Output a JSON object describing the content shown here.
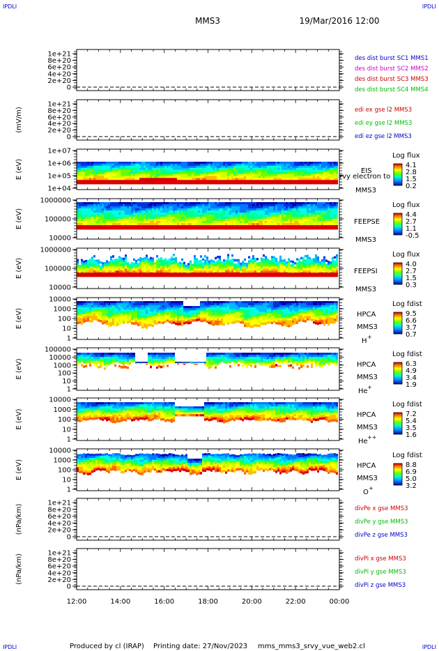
{
  "corner_tags": {
    "tl": "IPDLI",
    "tr": "IPDLI",
    "bl": "IPDLI",
    "br": "IPDLI"
  },
  "header": {
    "spacecraft": "MMS3",
    "datetime": "19/Mar/2016 12:00"
  },
  "footer": {
    "producer": "Produced by cl (IRAP)",
    "printing": "Printing date: 27/Nov/2023",
    "script": "mms_mms3_srvy_vue_web2.cl"
  },
  "time_axis": {
    "ticks": [
      "12:00",
      "14:00",
      "16:00",
      "18:00",
      "20:00",
      "22:00",
      "00:00"
    ],
    "range_hours": [
      12,
      24
    ]
  },
  "colors": {
    "blue": "#0000cc",
    "magenta": "#cc00cc",
    "red": "#cc0000",
    "green": "#00bb00"
  },
  "chart_data": [
    {
      "type": "line",
      "id": "des",
      "ylabel": "",
      "yticks": [
        "1e+21",
        "8e+20",
        "6e+20",
        "4e+20",
        "2e+20",
        "0"
      ],
      "legend": [
        {
          "text": "des dist burst SC1 MMS1",
          "color": "#0000cc"
        },
        {
          "text": "des dist burst SC2 MMS2",
          "color": "#cc00cc"
        },
        {
          "text": "des dist burst SC3 MMS3",
          "color": "#cc0000"
        },
        {
          "text": "des dist burst SC4 MMS4",
          "color": "#00bb00"
        }
      ]
    },
    {
      "type": "line",
      "id": "edi",
      "ylabel": "(mV/m)",
      "yticks": [
        "1e+21",
        "8e+20",
        "6e+20",
        "4e+20",
        "2e+20",
        "0"
      ],
      "legend": [
        {
          "text": "edi ex gse l2 MMS3",
          "color": "#cc0000"
        },
        {
          "text": "edi ey gse l2 MMS3",
          "color": "#00bb00"
        },
        {
          "text": "edi ez gse l2 MMS3",
          "color": "#0000cc"
        }
      ]
    },
    {
      "type": "heatmap",
      "id": "eis",
      "ylabel": "E (eV)",
      "yticks": [
        "1e+07",
        "1e+06",
        "1e+05",
        "1e+04"
      ],
      "labels": [
        "EIS",
        "MMS3"
      ],
      "overlay": "rvy electron to",
      "cbar_title": "Log flux",
      "cbar": [
        "4.1",
        "2.8",
        "1.5",
        "0.2"
      ]
    },
    {
      "type": "heatmap",
      "id": "feepse",
      "ylabel": "E (eV)",
      "yticks": [
        "1000000",
        "100000",
        "10000"
      ],
      "labels": [
        "FEEPSE",
        "MMS3"
      ],
      "cbar_title": "Log flux",
      "cbar": [
        "4.4",
        "2.7",
        "1.1",
        "-0.5"
      ]
    },
    {
      "type": "heatmap",
      "id": "feepsi",
      "ylabel": "E (eV)",
      "yticks": [
        "1000000",
        "100000",
        "10000"
      ],
      "labels": [
        "FEEPSI",
        "MMS3"
      ],
      "cbar_title": "Log flux",
      "cbar": [
        "4.0",
        "2.7",
        "1.5",
        "0.3"
      ]
    },
    {
      "type": "heatmap",
      "id": "hpca_h",
      "ylabel": "E (eV)",
      "yticks": [
        "10000",
        "1000",
        "100",
        "10",
        "1"
      ],
      "labels": [
        "HPCA",
        "MMS3"
      ],
      "species": "H",
      "charge": "+",
      "cbar_title": "Log fdist",
      "cbar": [
        "9.5",
        "6.6",
        "3.7",
        "0.7"
      ]
    },
    {
      "type": "heatmap",
      "id": "hpca_he",
      "ylabel": "E (eV)",
      "yticks": [
        "100000",
        "10000",
        "1000",
        "100",
        "10",
        "1"
      ],
      "labels": [
        "HPCA",
        "MMS3"
      ],
      "species": "He",
      "charge": "+",
      "cbar_title": "Log fdist",
      "cbar": [
        "6.3",
        "4.9",
        "3.4",
        "1.9"
      ]
    },
    {
      "type": "heatmap",
      "id": "hpca_hepp",
      "ylabel": "E (eV)",
      "yticks": [
        "10000",
        "1000",
        "100",
        "10",
        "1"
      ],
      "labels": [
        "HPCA",
        "MMS3"
      ],
      "species": "He",
      "charge": "++",
      "cbar_title": "Log fdist",
      "cbar": [
        "7.2",
        "5.4",
        "3.5",
        "1.6"
      ]
    },
    {
      "type": "heatmap",
      "id": "hpca_o",
      "ylabel": "E (eV)",
      "yticks": [
        "10000",
        "1000",
        "100",
        "10",
        "1"
      ],
      "labels": [
        "HPCA",
        "MMS3"
      ],
      "species": "O",
      "charge": "+",
      "cbar_title": "Log fdist",
      "cbar": [
        "8.8",
        "6.9",
        "5.0",
        "3.2"
      ]
    },
    {
      "type": "line",
      "id": "divpe",
      "ylabel": "(nPa/km)",
      "yticks": [
        "1e+21",
        "8e+20",
        "6e+20",
        "4e+20",
        "2e+20",
        "0"
      ],
      "legend": [
        {
          "text": "divPe x gse MMS3",
          "color": "#cc0000"
        },
        {
          "text": "divPe y gse MMS3",
          "color": "#00bb00"
        },
        {
          "text": "divPe z gse MMS3",
          "color": "#0000cc"
        }
      ]
    },
    {
      "type": "line",
      "id": "divpi",
      "ylabel": "(nPa/km)",
      "yticks": [
        "1e+21",
        "8e+20",
        "6e+20",
        "4e+20",
        "2e+20",
        "0"
      ],
      "legend": [
        {
          "text": "divPi x gse MMS3",
          "color": "#cc0000"
        },
        {
          "text": "divPi y gse MMS3",
          "color": "#00bb00"
        },
        {
          "text": "divPi z gse MMS3",
          "color": "#0000cc"
        }
      ]
    }
  ]
}
